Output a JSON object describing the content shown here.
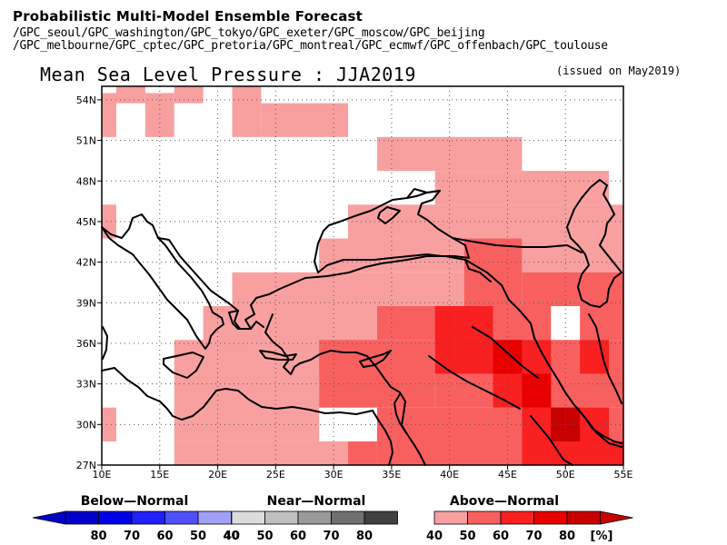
{
  "header": {
    "title": "Probabilistic Multi-Model Ensemble Forecast",
    "sources_line1": "/GPC_seoul/GPC_washington/GPC_tokyo/GPC_exeter/GPC_moscow/GPC_beijing",
    "sources_line2": "/GPC_melbourne/GPC_cptec/GPC_pretoria/GPC_montreal/GPC_ecmwf/GPC_offenbach/GPC_toulouse"
  },
  "map": {
    "title": "Mean Sea Level Pressure : JJA2019",
    "issued": "(issued on May2019)",
    "lon_range": [
      10,
      55
    ],
    "lat_range": [
      27,
      55
    ],
    "lon_ticks": [
      "10E",
      "15E",
      "20E",
      "25E",
      "30E",
      "35E",
      "40E",
      "45E",
      "50E",
      "55E"
    ],
    "lat_ticks": [
      "27N",
      "30N",
      "33N",
      "36N",
      "39N",
      "42N",
      "45N",
      "48N",
      "51N",
      "54N"
    ],
    "grid": "dotted"
  },
  "legend": {
    "below": {
      "title": "Below—Normal",
      "labels": [
        "80",
        "70",
        "60",
        "50",
        "40"
      ],
      "colors": [
        "#0000c8",
        "#0000e8",
        "#2020f8",
        "#5050f8",
        "#a0a0f8"
      ]
    },
    "near": {
      "title": "Near—Normal",
      "labels": [
        "40",
        "50",
        "60",
        "70",
        "80"
      ],
      "colors": [
        "#dcdcdc",
        "#c0c0c0",
        "#9a9a9a",
        "#707070",
        "#404040"
      ]
    },
    "above": {
      "title": "Above—Normal",
      "labels": [
        "40",
        "50",
        "60",
        "70",
        "80"
      ],
      "colors": [
        "#f8a0a0",
        "#f86060",
        "#f82020",
        "#e80000",
        "#c80000"
      ],
      "unit": "[%]"
    }
  },
  "probability_cells": [
    {
      "lon": [
        10,
        11.25
      ],
      "lat": [
        51.25,
        54.5
      ],
      "level": "40"
    },
    {
      "lon": [
        11.25,
        13.75
      ],
      "lat": [
        53.75,
        55
      ],
      "level": "40"
    },
    {
      "lon": [
        13.75,
        16.25
      ],
      "lat": [
        51.25,
        54.5
      ],
      "level": "40"
    },
    {
      "lon": [
        16.25,
        18.75
      ],
      "lat": [
        53.75,
        55
      ],
      "level": "40"
    },
    {
      "lon": [
        21.25,
        23.75
      ],
      "lat": [
        51.25,
        55
      ],
      "level": "40"
    },
    {
      "lon": [
        23.75,
        31.25
      ],
      "lat": [
        51.25,
        53.75
      ],
      "level": "40"
    },
    {
      "lon": [
        33.75,
        46.25
      ],
      "lat": [
        48.75,
        51.25
      ],
      "level": "40"
    },
    {
      "lon": [
        38.75,
        53.75
      ],
      "lat": [
        46.25,
        48.75
      ],
      "level": "40"
    },
    {
      "lon": [
        10,
        11.25
      ],
      "lat": [
        43.75,
        46.25
      ],
      "level": "40"
    },
    {
      "lon": [
        31.25,
        55
      ],
      "lat": [
        43.75,
        46.25
      ],
      "level": "40"
    },
    {
      "lon": [
        28.75,
        41.25
      ],
      "lat": [
        41.25,
        43.75
      ],
      "level": "40"
    },
    {
      "lon": [
        46.25,
        55
      ],
      "lat": [
        41.25,
        43.75
      ],
      "level": "40"
    },
    {
      "lon": [
        21.25,
        41.25
      ],
      "lat": [
        38.75,
        41.25
      ],
      "level": "40"
    },
    {
      "lon": [
        18.75,
        33.75
      ],
      "lat": [
        33.75,
        38.75
      ],
      "level": "40"
    },
    {
      "lon": [
        16.25,
        28.75
      ],
      "lat": [
        28.75,
        36.25
      ],
      "level": "40"
    },
    {
      "lon": [
        10,
        11.25
      ],
      "lat": [
        28.75,
        31.25
      ],
      "level": "40"
    },
    {
      "lon": [
        16.25,
        31.25
      ],
      "lat": [
        27,
        28.75
      ],
      "level": "40"
    },
    {
      "lon": [
        41.25,
        46.25
      ],
      "lat": [
        38.75,
        43.75
      ],
      "level": "50"
    },
    {
      "lon": [
        46.25,
        51.25
      ],
      "lat": [
        38.75,
        41.25
      ],
      "level": "50"
    },
    {
      "lon": [
        51.25,
        55
      ],
      "lat": [
        36.25,
        41.25
      ],
      "level": "50"
    },
    {
      "lon": [
        33.75,
        48.75
      ],
      "lat": [
        36.25,
        38.75
      ],
      "level": "50"
    },
    {
      "lon": [
        28.75,
        38.75
      ],
      "lat": [
        31.25,
        36.25
      ],
      "level": "50"
    },
    {
      "lon": [
        33.75,
        55
      ],
      "lat": [
        27,
        31.25
      ],
      "level": "50"
    },
    {
      "lon": [
        31.25,
        33.75
      ],
      "lat": [
        27,
        28.75
      ],
      "level": "50"
    },
    {
      "lon": [
        38.75,
        55
      ],
      "lat": [
        31.25,
        36.25
      ],
      "level": "50"
    },
    {
      "lon": [
        38.75,
        43.75
      ],
      "lat": [
        33.75,
        38.75
      ],
      "level": "60"
    },
    {
      "lon": [
        43.75,
        48.75
      ],
      "lat": [
        31.25,
        36.25
      ],
      "level": "60"
    },
    {
      "lon": [
        46.25,
        53.75
      ],
      "lat": [
        27,
        31.25
      ],
      "level": "60"
    },
    {
      "lon": [
        51.25,
        53.75
      ],
      "lat": [
        33.75,
        36.25
      ],
      "level": "60"
    },
    {
      "lon": [
        53.75,
        55
      ],
      "lat": [
        27,
        28.75
      ],
      "level": "60"
    },
    {
      "lon": [
        43.75,
        46.25
      ],
      "lat": [
        33.75,
        36.25
      ],
      "level": "70"
    },
    {
      "lon": [
        46.25,
        48.75
      ],
      "lat": [
        31.25,
        33.75
      ],
      "level": "70"
    },
    {
      "lon": [
        48.75,
        51.25
      ],
      "lat": [
        28.75,
        31.25
      ],
      "level": "80"
    }
  ]
}
